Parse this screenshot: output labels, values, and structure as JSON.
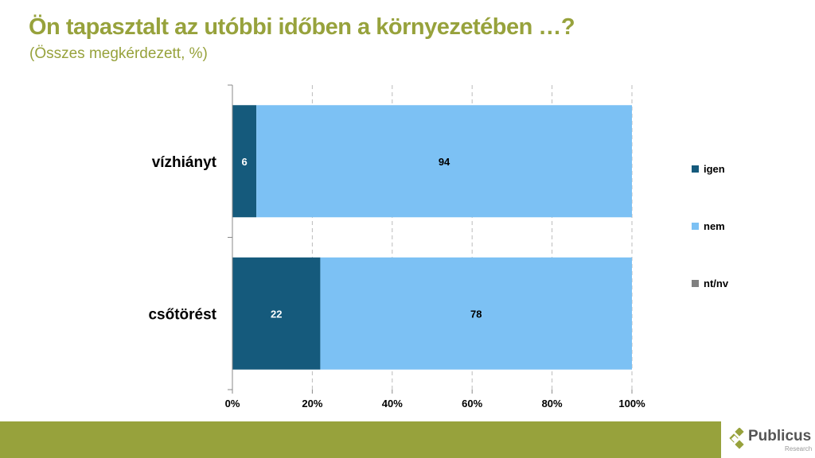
{
  "chart_data": {
    "type": "bar",
    "orientation": "horizontal",
    "stacked": true,
    "title": "Ön tapasztalt az utóbbi időben a környezetében …?",
    "subtitle": "(Összes megkérdezett, %)",
    "categories": [
      "vízhiányt",
      "csőtörést"
    ],
    "series": [
      {
        "name": "igen",
        "values": [
          6,
          22
        ],
        "color": "#155a7c"
      },
      {
        "name": "nem",
        "values": [
          94,
          78
        ],
        "color": "#7cc1f4"
      },
      {
        "name": "nt/nv",
        "values": [
          0,
          0
        ],
        "color": "#808080"
      }
    ],
    "xlim": [
      0,
      100
    ],
    "xticks": [
      "0%",
      "20%",
      "40%",
      "60%",
      "80%",
      "100%"
    ],
    "grid": true,
    "legend": "right"
  },
  "logo": {
    "name": "Publicus",
    "sub": "Research"
  }
}
